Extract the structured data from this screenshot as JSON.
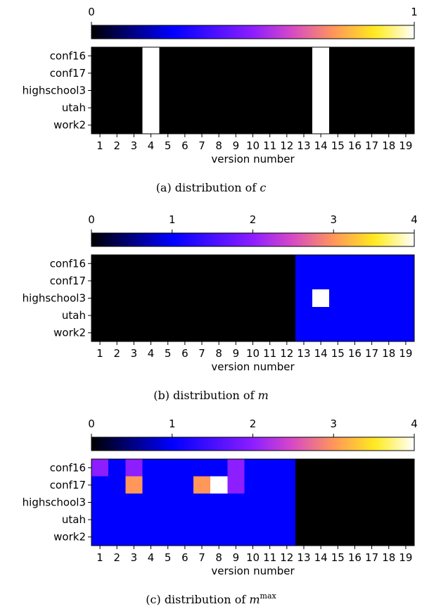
{
  "chart_data": [
    {
      "type": "heatmap",
      "caption_prefix": "(a) distribution of ",
      "caption_var": "c",
      "caption_sup": "",
      "xlabel": "version number",
      "x": [
        "1",
        "2",
        "3",
        "4",
        "5",
        "6",
        "7",
        "8",
        "9",
        "10",
        "11",
        "12",
        "13",
        "14",
        "15",
        "16",
        "17",
        "18",
        "19"
      ],
      "y": [
        "conf16",
        "conf17",
        "highschool3",
        "utah",
        "work2"
      ],
      "colorbar": {
        "min": 0,
        "max": 1,
        "ticks": [
          "0",
          "1"
        ],
        "colormap": "gnuplot2"
      },
      "values": [
        [
          0,
          0,
          0,
          1,
          0,
          0,
          0,
          0,
          0,
          0,
          0,
          0,
          0,
          1,
          0,
          0,
          0,
          0,
          0
        ],
        [
          0,
          0,
          0,
          1,
          0,
          0,
          0,
          0,
          0,
          0,
          0,
          0,
          0,
          1,
          0,
          0,
          0,
          0,
          0
        ],
        [
          0,
          0,
          0,
          1,
          0,
          0,
          0,
          0,
          0,
          0,
          0,
          0,
          0,
          1,
          0,
          0,
          0,
          0,
          0
        ],
        [
          0,
          0,
          0,
          1,
          0,
          0,
          0,
          0,
          0,
          0,
          0,
          0,
          0,
          1,
          0,
          0,
          0,
          0,
          0
        ],
        [
          0,
          0,
          0,
          1,
          0,
          0,
          0,
          0,
          0,
          0,
          0,
          0,
          0,
          1,
          0,
          0,
          0,
          0,
          0
        ]
      ]
    },
    {
      "type": "heatmap",
      "caption_prefix": "(b) distribution of ",
      "caption_var": "m",
      "caption_sup": "",
      "xlabel": "version number",
      "x": [
        "1",
        "2",
        "3",
        "4",
        "5",
        "6",
        "7",
        "8",
        "9",
        "10",
        "11",
        "12",
        "13",
        "14",
        "15",
        "16",
        "17",
        "18",
        "19"
      ],
      "y": [
        "conf16",
        "conf17",
        "highschool3",
        "utah",
        "work2"
      ],
      "colorbar": {
        "min": 0,
        "max": 4,
        "ticks": [
          "0",
          "1",
          "2",
          "3",
          "4"
        ],
        "colormap": "gnuplot2"
      },
      "values": [
        [
          0,
          0,
          0,
          0,
          0,
          0,
          0,
          0,
          0,
          0,
          0,
          0,
          1,
          1,
          1,
          1,
          1,
          1,
          1
        ],
        [
          0,
          0,
          0,
          0,
          0,
          0,
          0,
          0,
          0,
          0,
          0,
          0,
          1,
          1,
          1,
          1,
          1,
          1,
          1
        ],
        [
          0,
          0,
          0,
          0,
          0,
          0,
          0,
          0,
          0,
          0,
          0,
          0,
          1,
          4,
          1,
          1,
          1,
          1,
          1
        ],
        [
          0,
          0,
          0,
          0,
          0,
          0,
          0,
          0,
          0,
          0,
          0,
          0,
          1,
          1,
          1,
          1,
          1,
          1,
          1
        ],
        [
          0,
          0,
          0,
          0,
          0,
          0,
          0,
          0,
          0,
          0,
          0,
          0,
          1,
          1,
          1,
          1,
          1,
          1,
          1
        ]
      ]
    },
    {
      "type": "heatmap",
      "caption_prefix": "(c) distribution of ",
      "caption_var": "m",
      "caption_sup": "max",
      "xlabel": "version number",
      "x": [
        "1",
        "2",
        "3",
        "4",
        "5",
        "6",
        "7",
        "8",
        "9",
        "10",
        "11",
        "12",
        "13",
        "14",
        "15",
        "16",
        "17",
        "18",
        "19"
      ],
      "y": [
        "conf16",
        "conf17",
        "highschool3",
        "utah",
        "work2"
      ],
      "colorbar": {
        "min": 0,
        "max": 4,
        "ticks": [
          "0",
          "1",
          "2",
          "3",
          "4"
        ],
        "colormap": "gnuplot2"
      },
      "values": [
        [
          2,
          1,
          2,
          1,
          1,
          1,
          1,
          1,
          2,
          1,
          1,
          1,
          0,
          0,
          0,
          0,
          0,
          0,
          0
        ],
        [
          1,
          1,
          3,
          1,
          1,
          1,
          3,
          4,
          2,
          1,
          1,
          1,
          0,
          0,
          0,
          0,
          0,
          0,
          0
        ],
        [
          1,
          1,
          1,
          1,
          1,
          1,
          1,
          1,
          1,
          1,
          1,
          1,
          0,
          0,
          0,
          0,
          0,
          0,
          0
        ],
        [
          1,
          1,
          1,
          1,
          1,
          1,
          1,
          1,
          1,
          1,
          1,
          1,
          0,
          0,
          0,
          0,
          0,
          0,
          0
        ],
        [
          1,
          1,
          1,
          1,
          1,
          1,
          1,
          1,
          1,
          1,
          1,
          1,
          0,
          0,
          0,
          0,
          0,
          0,
          0
        ]
      ]
    }
  ]
}
